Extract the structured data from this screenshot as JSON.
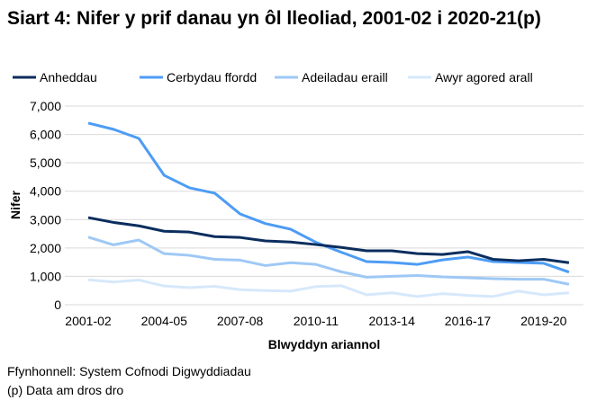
{
  "chart_data": {
    "type": "line",
    "title": "Siart 4: Nifer y prif danau yn ôl lleoliad, 2001-02 i 2020-21(p)",
    "xlabel": "Blwyddyn ariannol",
    "ylabel": "Nifer",
    "ylim": [
      0,
      7000
    ],
    "yticks": [
      "0",
      "1,000",
      "2,000",
      "3,000",
      "4,000",
      "5,000",
      "6,000",
      "7,000"
    ],
    "grid": true,
    "legend_position": "top",
    "x": [
      "2001-02",
      "2002-03",
      "2003-04",
      "2004-05",
      "2005-06",
      "2006-07",
      "2007-08",
      "2008-09",
      "2009-10",
      "2010-11",
      "2011-12",
      "2012-13",
      "2013-14",
      "2014-15",
      "2015-16",
      "2016-17",
      "2017-18",
      "2018-19",
      "2019-20",
      "2020-21"
    ],
    "xtick_labels": [
      "2001-02",
      "2004-05",
      "2007-08",
      "2010-11",
      "2013-14",
      "2016-17",
      "2019-20"
    ],
    "series": [
      {
        "name": "Anheddau",
        "color": "#0b2d5e",
        "values": [
          3070,
          2900,
          2780,
          2590,
          2560,
          2400,
          2370,
          2250,
          2210,
          2120,
          2020,
          1900,
          1900,
          1800,
          1770,
          1870,
          1600,
          1550,
          1600,
          1480
        ]
      },
      {
        "name": "Cerbydau ffordd",
        "color": "#4d9cf5",
        "values": [
          6400,
          6180,
          5860,
          4560,
          4120,
          3930,
          3200,
          2860,
          2660,
          2200,
          1850,
          1520,
          1490,
          1420,
          1580,
          1680,
          1520,
          1490,
          1460,
          1150
        ]
      },
      {
        "name": "Adeiladau eraill",
        "color": "#9ec8f5",
        "values": [
          2380,
          2110,
          2280,
          1800,
          1740,
          1600,
          1570,
          1380,
          1480,
          1420,
          1160,
          970,
          1000,
          1030,
          980,
          950,
          920,
          900,
          900,
          720
        ]
      },
      {
        "name": "Awyr agored arall",
        "color": "#d6e8fb",
        "values": [
          880,
          800,
          870,
          660,
          600,
          650,
          530,
          500,
          480,
          640,
          670,
          350,
          420,
          290,
          390,
          330,
          290,
          480,
          350,
          420
        ]
      }
    ]
  },
  "notes": {
    "source": "Ffynhonnell: System Cofnodi Digwyddiadau",
    "provisional": "(p) Data am dros dro"
  }
}
